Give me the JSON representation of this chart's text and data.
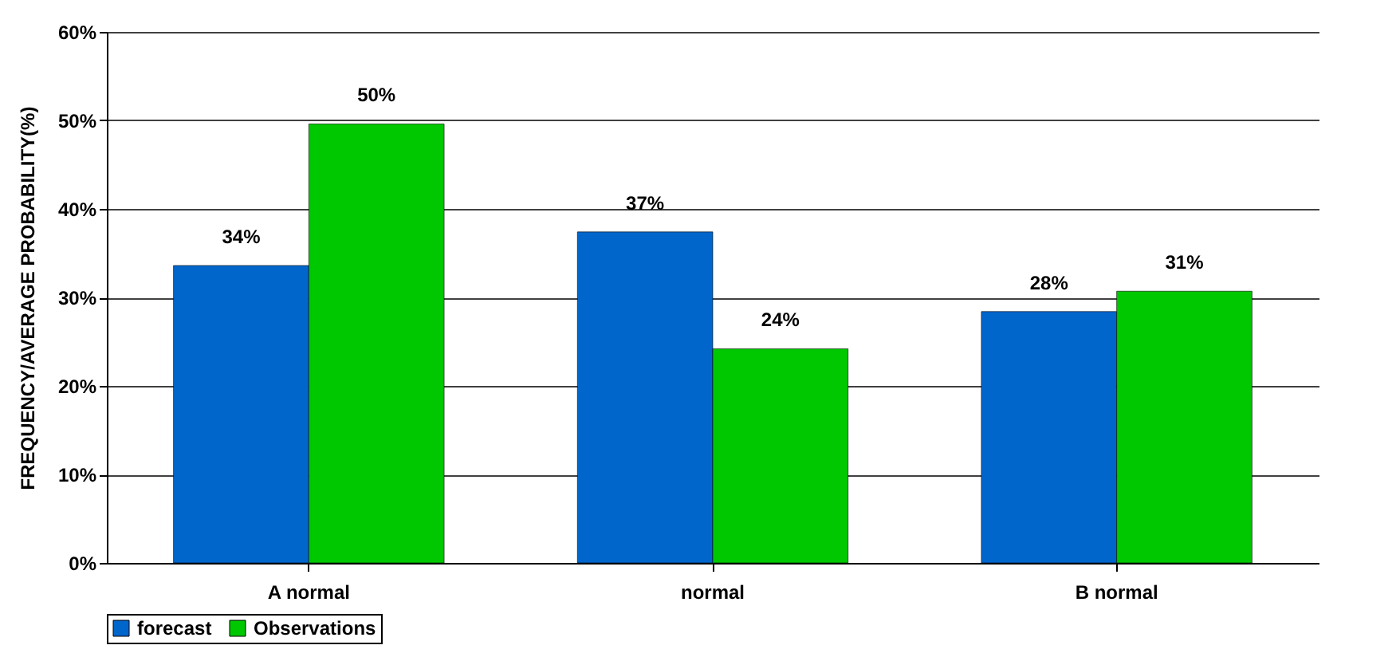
{
  "chart_data": {
    "type": "bar",
    "ylabel": "FREQUENCY/AVERAGE PROBABILITY(%)",
    "categories": [
      "A normal",
      "normal",
      "B normal"
    ],
    "series": [
      {
        "name": "forecast",
        "color": "#0066cc",
        "values": [
          33.6,
          37.4,
          28.4
        ],
        "value_labels": [
          "34%",
          "37%",
          "28%"
        ]
      },
      {
        "name": "Observations",
        "color": "#00c800",
        "values": [
          49.6,
          24.2,
          30.7
        ],
        "value_labels": [
          "50%",
          "24%",
          "31%"
        ]
      }
    ],
    "ylim": [
      0,
      60
    ],
    "yticks": [
      {
        "value": 0,
        "label": "0%"
      },
      {
        "value": 10,
        "label": "10%"
      },
      {
        "value": 20,
        "label": "20%"
      },
      {
        "value": 30,
        "label": "30%"
      },
      {
        "value": 40,
        "label": "40%"
      },
      {
        "value": 50,
        "label": "50%"
      },
      {
        "value": 60,
        "label": "60%"
      }
    ],
    "grid": "y",
    "legend": "bottom"
  }
}
